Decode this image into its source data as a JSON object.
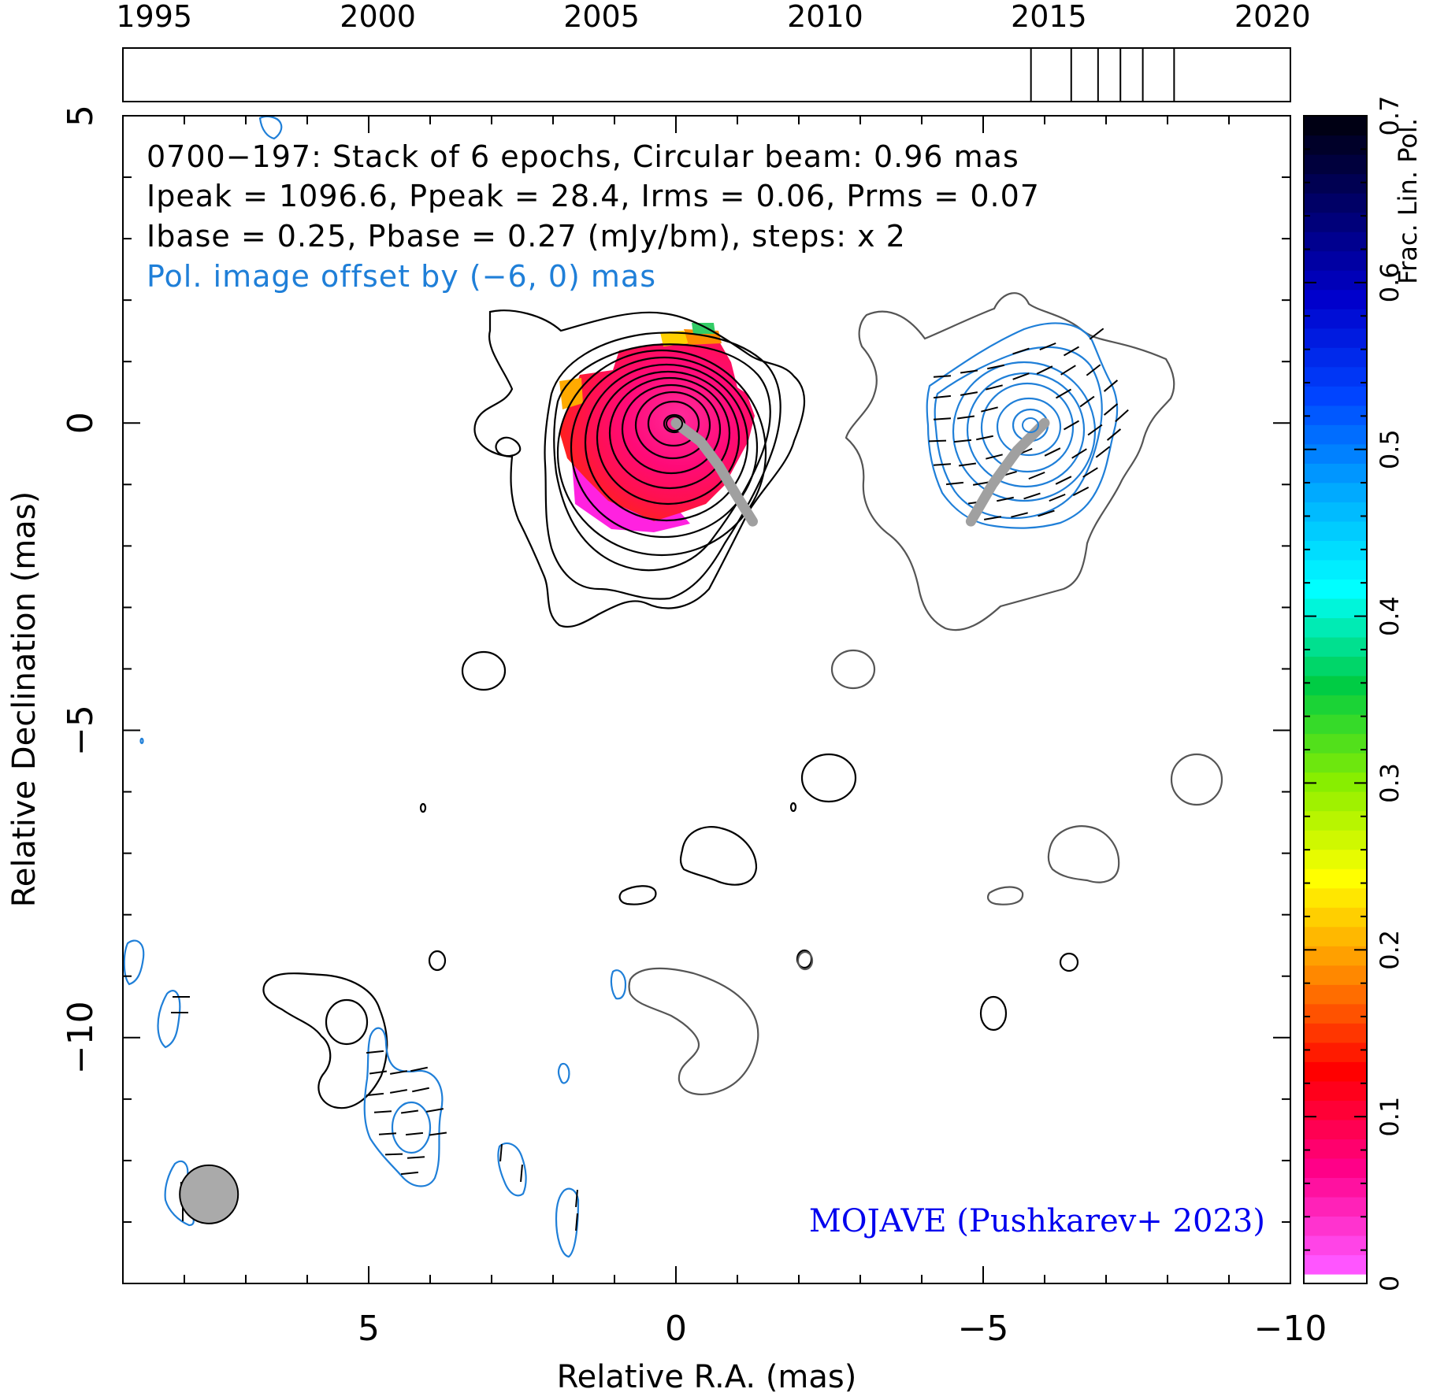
{
  "chart_data": {
    "type": "heatmap",
    "timeline": {
      "tick_labels": [
        "1995",
        "2000",
        "2005",
        "2010",
        "2015",
        "2020"
      ],
      "range": [
        1994.3,
        2020.4
      ],
      "epochs": [
        2014.6,
        2015.5,
        2016.1,
        2016.6,
        2017.1,
        2017.8
      ]
    },
    "map": {
      "xlabel": "Relative R.A. (mas)",
      "ylabel": "Relative Declination (mas)",
      "xlim": [
        9.0,
        -10.0
      ],
      "ylim": [
        -14.0,
        5.0
      ],
      "x_ticks": [
        5,
        0,
        -5,
        -10
      ],
      "x_tick_labels": [
        "5",
        "0",
        "−5",
        "−10"
      ],
      "y_ticks": [
        5,
        0,
        -5,
        -10
      ],
      "y_tick_labels": [
        "5",
        "0",
        "−5",
        "−10"
      ],
      "ridge_line_total": [
        [
          0.0,
          0.0
        ],
        [
          -0.4,
          -0.3
        ],
        [
          -0.7,
          -0.7
        ],
        [
          -1.0,
          -1.2
        ],
        [
          -1.25,
          -1.6
        ]
      ],
      "ridge_line_pol": [
        [
          -6.0,
          0.0
        ],
        [
          -5.55,
          -0.45
        ],
        [
          -5.15,
          -1.0
        ],
        [
          -4.8,
          -1.6
        ]
      ],
      "beam": {
        "x": 7.6,
        "y": -12.55,
        "diameter_mas": 0.96
      }
    },
    "annotations": {
      "line1": "0700−197: Stack of 6 epochs, Circular beam: 0.96 mas",
      "line2": "Ipeak = 1096.6, Ppeak = 28.4, Irms = 0.06, Prms = 0.07",
      "line3": "Ibase = 0.25, Pbase = 0.27 (mJy/bm), steps: x 2",
      "line4": "Pol. image offset by (−6, 0) mas",
      "credit": "MOJAVE (Pushkarev+ 2023)"
    },
    "colorbar": {
      "label": "Frac. Lin. Pol.",
      "range": [
        0.0,
        0.7
      ],
      "tick_labels": [
        "0",
        "0.1",
        "0.2",
        "0.3",
        "0.4",
        "0.5",
        "0.6",
        "0.7"
      ],
      "colors": [
        "#ff55ff",
        "#ff0088",
        "#ff0000",
        "#ff8800",
        "#ffff00",
        "#88ee00",
        "#00cc44",
        "#00ffff",
        "#00aaff",
        "#0044ff",
        "#0000cc",
        "#000066",
        "#000000"
      ]
    },
    "colors": {
      "total_contours": "#000000",
      "pol_contours": "#1f7fd8",
      "credit_text": "#0000ee",
      "offset_text": "#1f7fd8",
      "ridge": "#a0a0a0"
    }
  }
}
